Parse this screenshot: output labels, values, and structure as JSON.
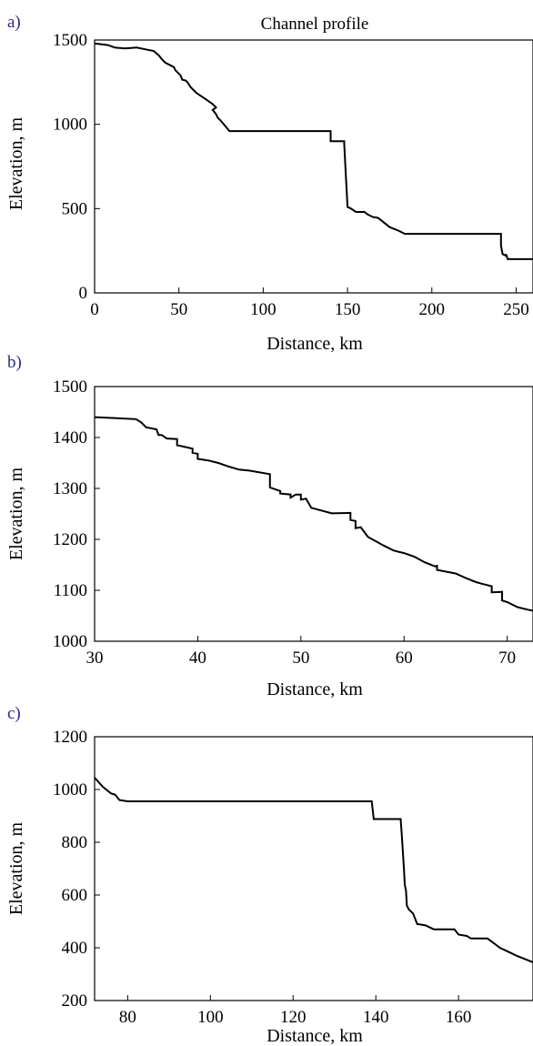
{
  "colors": {
    "line": "#000000",
    "frame": "#000000",
    "panel_label": "#2a2a8a",
    "background": "#ffffff"
  },
  "panels": [
    {
      "label": "a)",
      "title": "Channel profile",
      "xlabel": "Distance, km",
      "ylabel": "Elevation, m"
    },
    {
      "label": "b)",
      "title": "",
      "xlabel": "Distance, km",
      "ylabel": "Elevation, m"
    },
    {
      "label": "c)",
      "title": "",
      "xlabel": "Distance, km",
      "ylabel": "Elevation, m"
    }
  ],
  "chart_data": [
    {
      "type": "line",
      "title": "Channel profile",
      "xlabel": "Distance, km",
      "ylabel": "Elevation, m",
      "xlim": [
        0,
        260
      ],
      "ylim": [
        0,
        1500
      ],
      "xticks": [
        "0",
        "50",
        "100",
        "150",
        "200",
        "250"
      ],
      "yticks": [
        "0",
        "500",
        "1000",
        "1500"
      ],
      "grid": false,
      "series": [
        {
          "x": [
            0,
            8,
            12,
            18,
            25,
            30,
            35,
            38,
            40,
            42,
            45,
            47,
            48,
            50,
            51,
            52,
            54,
            55,
            57,
            60,
            62,
            65,
            70,
            72,
            70,
            72,
            73,
            75,
            80,
            100,
            120,
            140,
            140,
            148,
            148,
            149,
            150,
            152,
            155,
            160,
            162,
            165,
            168,
            170,
            175,
            180,
            184,
            200,
            220,
            241,
            241,
            242,
            244,
            244,
            245,
            260
          ],
          "y": [
            1480,
            1470,
            1455,
            1450,
            1455,
            1445,
            1435,
            1410,
            1385,
            1365,
            1350,
            1340,
            1320,
            1300,
            1290,
            1265,
            1260,
            1250,
            1220,
            1190,
            1175,
            1155,
            1120,
            1100,
            1085,
            1060,
            1040,
            1020,
            960,
            960,
            960,
            960,
            900,
            900,
            890,
            700,
            510,
            500,
            480,
            480,
            465,
            450,
            445,
            430,
            390,
            370,
            350,
            350,
            350,
            350,
            280,
            230,
            220,
            230,
            200,
            200
          ]
        }
      ]
    },
    {
      "type": "line",
      "xlabel": "Distance, km",
      "ylabel": "Elevation, m",
      "xlim": [
        30,
        72.5
      ],
      "ylim": [
        1000,
        1500
      ],
      "xticks": [
        "30",
        "40",
        "50",
        "60",
        "70"
      ],
      "yticks": [
        "1000",
        "1100",
        "1200",
        "1300",
        "1400",
        "1500"
      ],
      "grid": false,
      "series": [
        {
          "x": [
            30,
            34,
            34.5,
            35,
            36,
            36.2,
            36.5,
            37,
            38,
            38,
            39.5,
            39.5,
            40,
            40,
            41,
            42,
            43,
            44,
            45,
            47,
            47,
            48,
            48,
            49,
            49,
            49.5,
            50,
            50,
            50.5,
            51,
            53,
            54.8,
            54.8,
            55.3,
            55.3,
            55.8,
            56.5,
            58,
            59,
            60,
            61,
            62,
            63,
            63.2,
            63.2,
            65,
            66,
            67,
            67.5,
            68.5,
            68.5,
            69.5,
            69.5,
            70,
            71,
            72,
            72.5
          ],
          "y": [
            1440,
            1436,
            1430,
            1420,
            1416,
            1405,
            1405,
            1398,
            1397,
            1385,
            1378,
            1370,
            1368,
            1358,
            1355,
            1350,
            1343,
            1337,
            1335,
            1328,
            1302,
            1295,
            1290,
            1288,
            1282,
            1288,
            1288,
            1278,
            1280,
            1262,
            1251,
            1252,
            1238,
            1236,
            1222,
            1224,
            1205,
            1188,
            1178,
            1173,
            1166,
            1155,
            1147,
            1148,
            1140,
            1133,
            1124,
            1116,
            1113,
            1108,
            1096,
            1097,
            1080,
            1077,
            1067,
            1062,
            1060
          ]
        }
      ]
    },
    {
      "type": "line",
      "xlabel": "Distance, km",
      "ylabel": "Elevation, m",
      "xlim": [
        72,
        178
      ],
      "ylim": [
        200,
        1200
      ],
      "xticks": [
        "80",
        "100",
        "120",
        "140",
        "160"
      ],
      "yticks": [
        "200",
        "400",
        "600",
        "800",
        "1000",
        "1200"
      ],
      "grid": false,
      "series": [
        {
          "x": [
            72,
            74,
            76,
            77,
            78,
            80,
            100,
            120,
            139,
            139.5,
            146,
            146.3,
            146.8,
            147,
            147.3,
            147.5,
            148,
            149,
            150,
            152,
            154,
            156,
            159,
            160,
            162,
            163,
            165,
            167,
            170,
            172,
            174,
            178
          ],
          "y": [
            1045,
            1010,
            985,
            980,
            960,
            955,
            955,
            955,
            955,
            888,
            888,
            820,
            700,
            640,
            615,
            560,
            545,
            530,
            490,
            485,
            470,
            470,
            470,
            450,
            445,
            435,
            435,
            435,
            400,
            385,
            370,
            345
          ]
        }
      ]
    }
  ]
}
